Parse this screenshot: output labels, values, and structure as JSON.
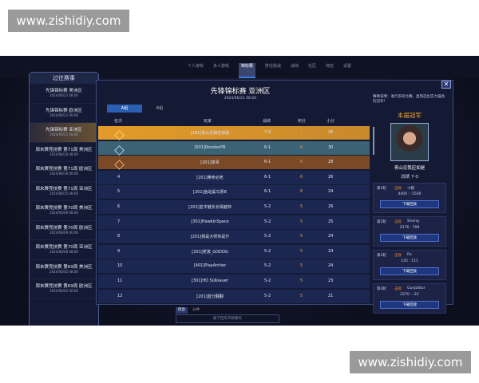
{
  "watermark": "www.zishidiy.com",
  "topnav": [
    "个人游戏",
    "多人游戏",
    "锦标赛",
    "排位挑战",
    "战绩",
    "社区",
    "商店",
    "设置"
  ],
  "topnav_active": 2,
  "history": {
    "title": "过往赛事",
    "items": [
      {
        "t": "先锋锦标赛 美洲区",
        "d": "2024/06/22 08:00"
      },
      {
        "t": "先锋锦标赛 欧洲区",
        "d": "2024/06/22 00:00"
      },
      {
        "t": "先锋锦标赛 亚洲区",
        "d": "2024/06/21 08:00"
      },
      {
        "t": "周末赛竞技赛 第71周 美洲区",
        "d": "2024/06/16 08:00"
      },
      {
        "t": "周末赛竞技赛 第71周 欧洲区",
        "d": "2024/06/16 00:00"
      },
      {
        "t": "周末赛竞技赛 第71周 亚洲区",
        "d": "2024/06/15 08:00"
      },
      {
        "t": "周末赛竞技赛 第70周 美洲区",
        "d": "2024/06/09 08:00"
      },
      {
        "t": "周末赛竞技赛 第70周 欧洲区",
        "d": "2024/06/09 00:00"
      },
      {
        "t": "周末赛竞技赛 第70周 亚洲区",
        "d": "2024/06/08 08:00"
      },
      {
        "t": "周末赛竞技赛 第69周 美洲区",
        "d": "2024/06/02 08:00"
      },
      {
        "t": "周末赛竞技赛 第69周 欧洲区",
        "d": "2024/06/02 00:00"
      }
    ]
  },
  "main": {
    "title": "先锋锦标赛 亚洲区",
    "date": "2024/06/21 08:00",
    "tabs": [
      "A组",
      "B组"
    ],
    "headers": [
      "名次",
      "玩家",
      "战绩",
      "积分",
      "小分"
    ],
    "rows": [
      [
        "1",
        "[201]青山见我应如是",
        "7-0",
        "7",
        "26"
      ],
      [
        "2",
        "[501]RoosterPB",
        "6-1",
        "6",
        "30"
      ],
      [
        "3",
        "[201]单青",
        "6-1",
        "6",
        "28"
      ],
      [
        "4",
        "[201]拳命必死",
        "6-1",
        "6",
        "26"
      ],
      [
        "5",
        "[201]鱼站鲨鸟票B",
        "6-1",
        "6",
        "24"
      ],
      [
        "6",
        "[201]名字越长长得越帅",
        "5-2",
        "5",
        "26"
      ],
      [
        "7",
        "[301]HawkInSpace",
        "5-2",
        "5",
        "25"
      ],
      [
        "8",
        "[201]我是大师你是什",
        "5-2",
        "5",
        "24"
      ],
      [
        "9",
        "[201]老滚_GODOG",
        "5-2",
        "5",
        "24"
      ],
      [
        "10",
        "[401]PlayArcher",
        "5-2",
        "5",
        "24"
      ],
      [
        "11",
        "[301]HD Süßsauer",
        "5-2",
        "5",
        "23"
      ],
      [
        "12",
        "[201]蓝分翻翻",
        "5-2",
        "5",
        "21"
      ]
    ]
  },
  "right": {
    "desc": "赛事说明：进行多轮比赛，直到选出实力强劲的冠军！",
    "champ_title": "本届冠军",
    "champ_name": "青山见我应如是",
    "champ_record": "战绩 7-0",
    "rounds": [
      {
        "r": "第1轮",
        "w": "击败",
        "op": "十碗",
        "sc": "4400 : -1500"
      },
      {
        "r": "第2轮",
        "w": "击败",
        "op": "Strong",
        "sc": "2576 : 708"
      },
      {
        "r": "第3轮",
        "w": "击败",
        "op": "Rx",
        "sc": "135 : 111"
      },
      {
        "r": "第4轮",
        "w": "击败",
        "op": "GunJaStar",
        "sc": "2270 : -22"
      }
    ],
    "download": "下载回放"
  },
  "chat": {
    "tabs": [
      "综合",
      "公共"
    ],
    "placeholder": "按下回车开始聊天"
  },
  "close": "✕"
}
